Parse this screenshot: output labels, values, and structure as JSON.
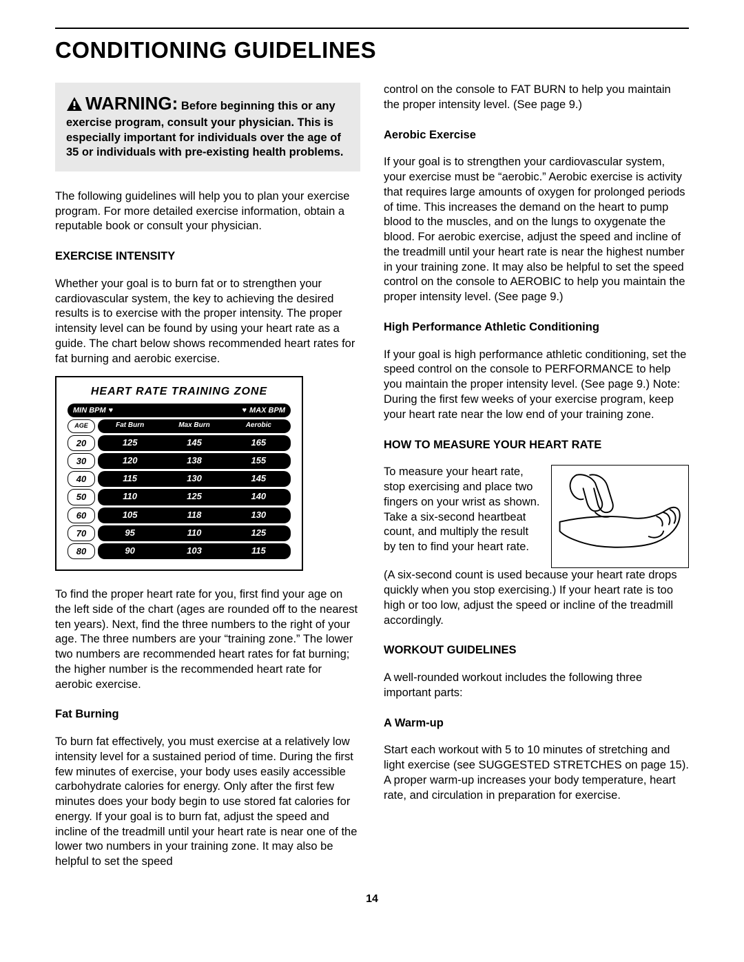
{
  "title": "CONDITIONING GUIDELINES",
  "warning": {
    "title": "WARNING:",
    "lead": "Before beginning",
    "body": "this or any exercise program, consult your physician. This is especially important for individuals over the age of 35 or individuals with pre-existing health problems."
  },
  "intro": "The following guidelines will help you to plan your exercise program. For more detailed exercise information, obtain a reputable book or consult your physician.",
  "exercise_intensity": {
    "head": "EXERCISE INTENSITY",
    "p1": "Whether your goal is to burn fat or to strengthen your cardiovascular system, the key to achieving the desired results is to exercise with the proper intensity. The proper intensity level can be found by using your heart rate as a guide. The chart below shows recommended heart rates for fat burning and aerobic exercise."
  },
  "chart": {
    "title": "HEART RATE TRAINING ZONE",
    "min_label": "MIN BPM",
    "max_label": "MAX BPM",
    "col_age": "AGE",
    "col_fat": "Fat Burn",
    "col_max": "Max Burn",
    "col_aero": "Aerobic",
    "rows": [
      {
        "age": "20",
        "fat": "125",
        "max": "145",
        "aero": "165"
      },
      {
        "age": "30",
        "fat": "120",
        "max": "138",
        "aero": "155"
      },
      {
        "age": "40",
        "fat": "115",
        "max": "130",
        "aero": "145"
      },
      {
        "age": "50",
        "fat": "110",
        "max": "125",
        "aero": "140"
      },
      {
        "age": "60",
        "fat": "105",
        "max": "118",
        "aero": "130"
      },
      {
        "age": "70",
        "fat": "95",
        "max": "110",
        "aero": "125"
      },
      {
        "age": "80",
        "fat": "90",
        "max": "103",
        "aero": "115"
      }
    ]
  },
  "chart_explain": "To find the proper heart rate for you, first find your age on the left side of the chart (ages are rounded off to the nearest ten years). Next, find the three numbers to the right of your age. The three numbers are your “training zone.” The lower two numbers are recommended heart rates for fat burning; the higher number is the recommended heart rate for aerobic exercise.",
  "fat_burning": {
    "head": "Fat Burning",
    "p": "To burn fat effectively, you must exercise at a relatively low intensity level for a sustained period of time. During the first few minutes of exercise, your body uses easily accessible carbohydrate calories for energy. Only after the first few minutes does your body begin to use stored fat calories for energy. If your goal is to burn fat, adjust the speed and incline of the treadmill until your heart rate is near one of the lower two numbers in your training zone. It may also be helpful to set the speed"
  },
  "col2_top": "control on the console to FAT BURN to help you maintain the proper intensity level. (See page 9.)",
  "aerobic": {
    "head": "Aerobic Exercise",
    "p": "If your goal is to strengthen your cardiovascular system, your exercise must be “aerobic.” Aerobic exercise is activity that requires large amounts of oxygen for prolonged periods of time. This increases the demand on the heart to pump blood to the muscles, and on the lungs to oxygenate the blood. For aerobic exercise, adjust the speed and incline of the treadmill until your heart rate is near the highest number in your training zone. It may also be helpful to set the speed control on the console to AEROBIC to help you maintain the proper intensity level. (See page 9.)"
  },
  "high_perf": {
    "head": "High Performance Athletic Conditioning",
    "p": "If your goal is high performance athletic conditioning, set the speed control on the console to PERFORMANCE to help you maintain the proper intensity level. (See page 9.) Note: During the first few weeks of your exercise program, keep your heart rate near the low end of your training zone."
  },
  "measure": {
    "head": "HOW TO MEASURE YOUR HEART RATE",
    "p1": "To measure your heart rate, stop exercising and place two fingers on your wrist as shown. Take a six-second heartbeat count, and multiply the result by ten to find your heart rate.",
    "p2": "(A six-second count is used because your heart rate drops quickly when you stop exercising.) If your heart rate is too high or too low, adjust the speed or incline of the treadmill accordingly."
  },
  "workout": {
    "head": "WORKOUT GUIDELINES",
    "p": "A well-rounded workout includes the following three important parts:"
  },
  "warmup": {
    "head": "A Warm-up",
    "p": "Start each workout with 5 to 10 minutes of stretching and light exercise (see SUGGESTED STRETCHES on page 15). A proper warm-up increases your body temperature, heart rate, and circulation in preparation for exercise."
  },
  "page_number": "14",
  "colors": {
    "bg": "#ffffff",
    "text": "#000000",
    "warning_bg": "#e8e8e8",
    "chart_bar": "#000000"
  }
}
